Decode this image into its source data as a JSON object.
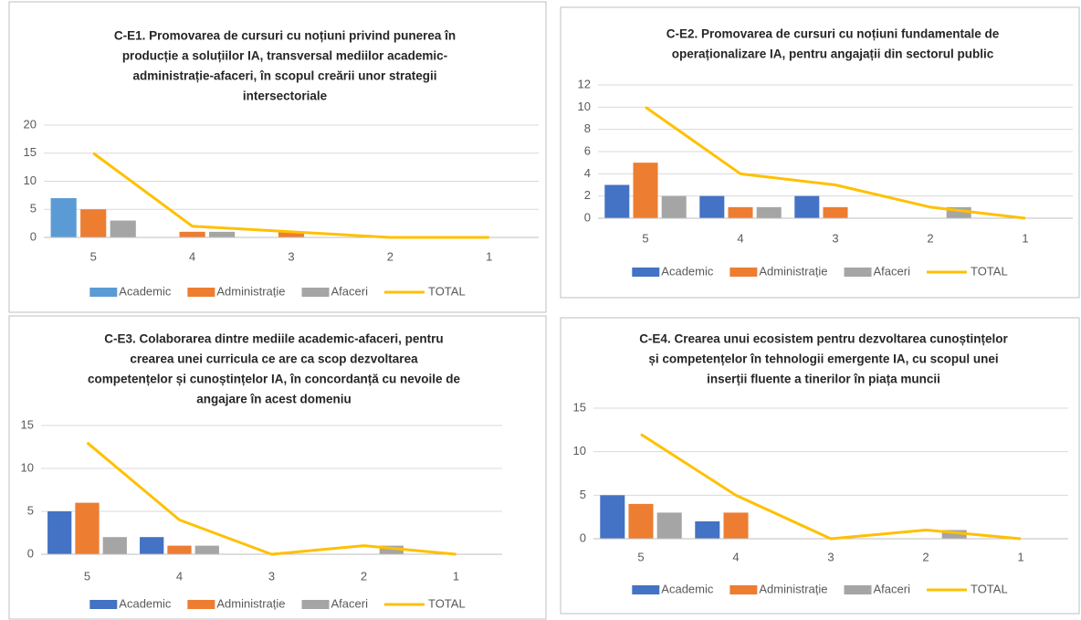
{
  "chart_data": [
    {
      "type": "combo",
      "title": [
        "C-E1. Promovarea de cursuri cu noțiuni privind punerea în",
        "producție a soluțiilor IA, transversal mediilor academic-",
        "administrație-afaceri, în scopul creării unor strategii",
        "intersectoriale"
      ],
      "categories": [
        "5",
        "4",
        "3",
        "2",
        "1"
      ],
      "series": [
        {
          "name": "Academic",
          "color": "#5b9bd5",
          "kind": "bar",
          "values": [
            7,
            0,
            0,
            0,
            0
          ]
        },
        {
          "name": "Administrație",
          "color": "#ed7d31",
          "kind": "bar",
          "values": [
            5,
            1,
            1,
            0,
            0
          ]
        },
        {
          "name": "Afaceri",
          "color": "#a5a5a5",
          "kind": "bar",
          "values": [
            3,
            1,
            0,
            0,
            0
          ]
        },
        {
          "name": "TOTAL",
          "color": "#ffc000",
          "kind": "line",
          "values": [
            15,
            2,
            1,
            0,
            0
          ]
        }
      ],
      "ylim": [
        0,
        20
      ],
      "yticks": [
        0,
        5,
        10,
        15,
        20
      ],
      "grid": true,
      "legend": "bottom"
    },
    {
      "type": "combo",
      "title": [
        "C-E2. Promovarea de cursuri cu noțiuni fundamentale de",
        "operaționalizare IA, pentru angajații din sectorul public"
      ],
      "categories": [
        "5",
        "4",
        "3",
        "2",
        "1"
      ],
      "series": [
        {
          "name": "Academic",
          "color": "#4472c4",
          "kind": "bar",
          "values": [
            3,
            2,
            2,
            0,
            0
          ]
        },
        {
          "name": "Administrație",
          "color": "#ed7d31",
          "kind": "bar",
          "values": [
            5,
            1,
            1,
            0,
            0
          ]
        },
        {
          "name": "Afaceri",
          "color": "#a5a5a5",
          "kind": "bar",
          "values": [
            2,
            1,
            0,
            1,
            0
          ]
        },
        {
          "name": "TOTAL",
          "color": "#ffc000",
          "kind": "line",
          "values": [
            10,
            4,
            3,
            1,
            0
          ]
        }
      ],
      "ylim": [
        0,
        12
      ],
      "yticks": [
        0,
        2,
        4,
        6,
        8,
        10,
        12
      ],
      "grid": true,
      "legend": "bottom"
    },
    {
      "type": "combo",
      "title": [
        "C-E3. Colaborarea dintre mediile academic-afaceri, pentru",
        "crearea unei curricula ce are ca scop dezvoltarea",
        "competențelor și cunoștințelor IA, în concordanță cu nevoile de",
        "angajare în acest domeniu"
      ],
      "categories": [
        "5",
        "4",
        "3",
        "2",
        "1"
      ],
      "series": [
        {
          "name": "Academic",
          "color": "#4472c4",
          "kind": "bar",
          "values": [
            5,
            2,
            0,
            0,
            0
          ]
        },
        {
          "name": "Administrație",
          "color": "#ed7d31",
          "kind": "bar",
          "values": [
            6,
            1,
            0,
            0,
            0
          ]
        },
        {
          "name": "Afaceri",
          "color": "#a5a5a5",
          "kind": "bar",
          "values": [
            2,
            1,
            0,
            1,
            0
          ]
        },
        {
          "name": "TOTAL",
          "color": "#ffc000",
          "kind": "line",
          "values": [
            13,
            4,
            0,
            1,
            0
          ]
        }
      ],
      "ylim": [
        0,
        15
      ],
      "yticks": [
        0,
        5,
        10,
        15
      ],
      "grid": true,
      "legend": "bottom"
    },
    {
      "type": "combo",
      "title": [
        "C-E4. Crearea unui ecosistem pentru dezvoltarea cunoștințelor",
        "și competențelor în tehnologii emergente IA, cu scopul unei",
        "inserții fluente a tinerilor  în piața muncii"
      ],
      "categories": [
        "5",
        "4",
        "3",
        "2",
        "1"
      ],
      "series": [
        {
          "name": "Academic",
          "color": "#4472c4",
          "kind": "bar",
          "values": [
            5,
            2,
            0,
            0,
            0
          ]
        },
        {
          "name": "Administrație",
          "color": "#ed7d31",
          "kind": "bar",
          "values": [
            4,
            3,
            0,
            0,
            0
          ]
        },
        {
          "name": "Afaceri",
          "color": "#a5a5a5",
          "kind": "bar",
          "values": [
            3,
            0,
            0,
            1,
            0
          ]
        },
        {
          "name": "TOTAL",
          "color": "#ffc000",
          "kind": "line",
          "values": [
            12,
            5,
            0,
            1,
            0
          ]
        }
      ],
      "ylim": [
        0,
        15
      ],
      "yticks": [
        0,
        5,
        10,
        15
      ],
      "grid": true,
      "legend": "bottom"
    }
  ]
}
